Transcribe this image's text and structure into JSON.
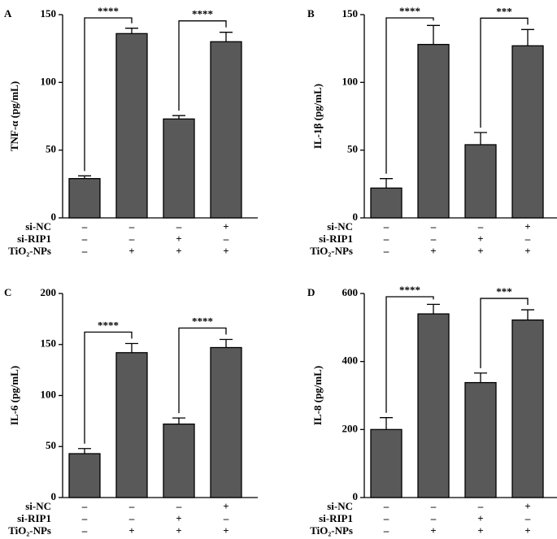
{
  "chart_data": [
    {
      "type": "bar",
      "panel_label": "A",
      "ylabel": "TNF-α (pg/mL)",
      "ylim": [
        0,
        150
      ],
      "yticks": [
        0,
        50,
        100,
        150
      ],
      "color": "#595959",
      "values": [
        29,
        136,
        73,
        130
      ],
      "errors": [
        2,
        4,
        2.5,
        7
      ],
      "conditions": [
        {
          "name": "si-NC",
          "marks": [
            "–",
            "–",
            "–",
            "+"
          ]
        },
        {
          "name": "si-RIP1",
          "marks": [
            "–",
            "–",
            "+",
            "–"
          ]
        },
        {
          "name": "TiO₂-NPs",
          "marks": [
            "–",
            "+",
            "+",
            "+"
          ]
        }
      ],
      "brackets": [
        {
          "label": "****",
          "between": [
            0,
            1
          ]
        },
        {
          "label": "****",
          "between": [
            2,
            3
          ]
        }
      ]
    },
    {
      "type": "bar",
      "panel_label": "B",
      "ylabel": "IL-1β (pg/mL)",
      "ylim": [
        0,
        150
      ],
      "yticks": [
        0,
        50,
        100,
        150
      ],
      "color": "#595959",
      "values": [
        22,
        128,
        54,
        127
      ],
      "errors": [
        7,
        14,
        9,
        12
      ],
      "conditions": [
        {
          "name": "si-NC",
          "marks": [
            "–",
            "–",
            "–",
            "+"
          ]
        },
        {
          "name": "si-RIP1",
          "marks": [
            "–",
            "–",
            "+",
            "–"
          ]
        },
        {
          "name": "TiO₂-NPs",
          "marks": [
            "–",
            "+",
            "+",
            "+"
          ]
        }
      ],
      "brackets": [
        {
          "label": "****",
          "between": [
            0,
            1
          ]
        },
        {
          "label": "***",
          "between": [
            2,
            3
          ]
        }
      ]
    },
    {
      "type": "bar",
      "panel_label": "C",
      "ylabel": "IL-6 (pg/mL)",
      "ylim": [
        0,
        200
      ],
      "yticks": [
        0,
        50,
        100,
        150,
        200
      ],
      "color": "#595959",
      "values": [
        43,
        142,
        72,
        147
      ],
      "errors": [
        5,
        9,
        6,
        8
      ],
      "conditions": [
        {
          "name": "si-NC",
          "marks": [
            "–",
            "–",
            "–",
            "+"
          ]
        },
        {
          "name": "si-RIP1",
          "marks": [
            "–",
            "–",
            "+",
            "–"
          ]
        },
        {
          "name": "TiO₂-NPs",
          "marks": [
            "–",
            "+",
            "+",
            "+"
          ]
        }
      ],
      "brackets": [
        {
          "label": "****",
          "between": [
            0,
            1
          ]
        },
        {
          "label": "****",
          "between": [
            2,
            3
          ]
        }
      ]
    },
    {
      "type": "bar",
      "panel_label": "D",
      "ylabel": "IL-8 (pg/mL)",
      "ylim": [
        0,
        600
      ],
      "yticks": [
        0,
        200,
        400,
        600
      ],
      "color": "#595959",
      "values": [
        200,
        540,
        338,
        522
      ],
      "errors": [
        35,
        28,
        28,
        30
      ],
      "conditions": [
        {
          "name": "si-NC",
          "marks": [
            "–",
            "–",
            "–",
            "+"
          ]
        },
        {
          "name": "si-RIP1",
          "marks": [
            "–",
            "–",
            "+",
            "–"
          ]
        },
        {
          "name": "TiO₂-NPs",
          "marks": [
            "–",
            "+",
            "+",
            "+"
          ]
        }
      ],
      "brackets": [
        {
          "label": "****",
          "between": [
            0,
            1
          ]
        },
        {
          "label": "***",
          "between": [
            2,
            3
          ]
        }
      ]
    }
  ]
}
